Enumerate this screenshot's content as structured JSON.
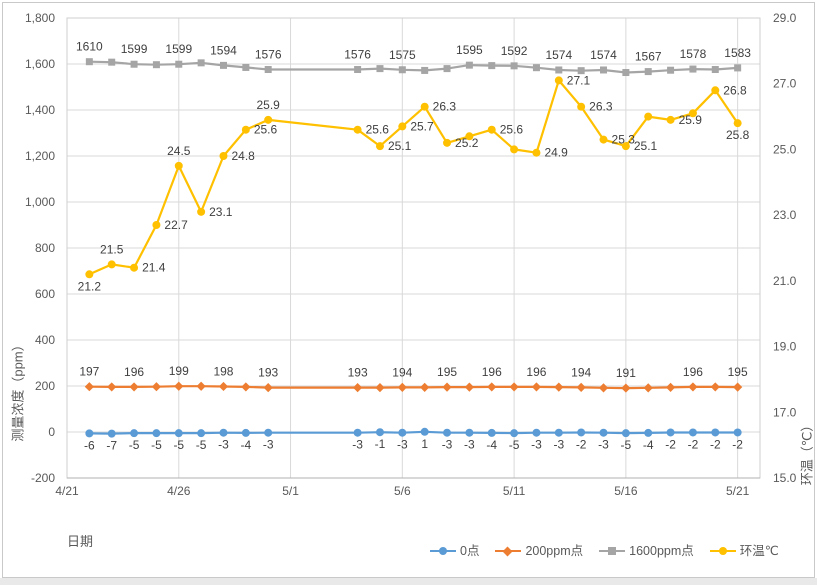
{
  "frame": {
    "background": "#ffffff",
    "border_color": "#c9c9c9",
    "outside_strip_color": "#e9e9e9"
  },
  "colors": {
    "gridline": "#d9d9d9",
    "plot_border": "#cfcfcf",
    "axis_line": "#b0b0b0",
    "axis_text": "#595959",
    "data_label_text": "#3f3f3f"
  },
  "chart_data": {
    "type": "line",
    "title": "",
    "x_axis": {
      "label": "日期",
      "start_date": "4/21",
      "end_date": "5/21",
      "axis_days": 31,
      "ticks": [
        {
          "label": "4/21",
          "day": 0
        },
        {
          "label": "4/26",
          "day": 5
        },
        {
          "label": "5/1",
          "day": 10
        },
        {
          "label": "5/6",
          "day": 15
        },
        {
          "label": "5/11",
          "day": 20
        },
        {
          "label": "5/16",
          "day": 25
        },
        {
          "label": "5/21",
          "day": 30
        }
      ]
    },
    "y_left": {
      "label": "测量浓度（ppm）",
      "min": -200,
      "max": 1800,
      "step": 200,
      "tick_labels": [
        "-200",
        "0",
        "200",
        "400",
        "600",
        "800",
        "1,000",
        "1,200",
        "1,400",
        "1,600",
        "1,800"
      ]
    },
    "y_right": {
      "label": "环温（℃）",
      "min": 15,
      "max": 29,
      "step": 2,
      "tick_labels": [
        "15.0",
        "17.0",
        "19.0",
        "21.0",
        "23.0",
        "25.0",
        "27.0",
        "29.0"
      ]
    },
    "legend": {
      "position": "bottom"
    },
    "series": [
      {
        "name": "0点",
        "color": "#5B9BD5",
        "marker": "circle",
        "axis": "left",
        "points": [
          [
            1,
            -6,
            "-6",
            "below"
          ],
          [
            2,
            -7,
            "-7",
            "below"
          ],
          [
            3,
            -5,
            "-5",
            "below"
          ],
          [
            4,
            -5,
            "-5",
            "below"
          ],
          [
            5,
            -5,
            "-5",
            "below"
          ],
          [
            6,
            -5,
            "-5",
            "below"
          ],
          [
            7,
            -3,
            "-3",
            "below"
          ],
          [
            8,
            -4,
            "-4",
            "below"
          ],
          [
            9,
            -3,
            "-3",
            "below"
          ],
          [
            13,
            -3,
            "-3",
            "below"
          ],
          [
            14,
            -1,
            "-1",
            "below"
          ],
          [
            15,
            -3,
            "-3",
            "below"
          ],
          [
            16,
            1,
            "1",
            "below"
          ],
          [
            17,
            -3,
            "-3",
            "below"
          ],
          [
            18,
            -3,
            "-3",
            "below"
          ],
          [
            19,
            -4,
            "-4",
            "below"
          ],
          [
            20,
            -5,
            "-5",
            "below"
          ],
          [
            21,
            -3,
            "-3",
            "below"
          ],
          [
            22,
            -3,
            "-3",
            "below"
          ],
          [
            23,
            -2,
            "-2",
            "below"
          ],
          [
            24,
            -3,
            "-3",
            "below"
          ],
          [
            25,
            -5,
            "-5",
            "below"
          ],
          [
            26,
            -4,
            "-4",
            "below"
          ],
          [
            27,
            -2,
            "-2",
            "below"
          ],
          [
            28,
            -2,
            "-2",
            "below"
          ],
          [
            29,
            -2,
            "-2",
            "below"
          ],
          [
            30,
            -2,
            "-2",
            "below"
          ]
        ]
      },
      {
        "name": "200ppm点",
        "color": "#ED7D31",
        "marker": "diamond",
        "axis": "left",
        "points": [
          [
            1,
            197,
            "197",
            "above"
          ],
          [
            2,
            196,
            null,
            null
          ],
          [
            3,
            196,
            "196",
            "above"
          ],
          [
            4,
            197,
            null,
            null
          ],
          [
            5,
            199,
            "199",
            "above"
          ],
          [
            6,
            199,
            null,
            null
          ],
          [
            7,
            198,
            "198",
            "above"
          ],
          [
            8,
            196,
            null,
            null
          ],
          [
            9,
            193,
            "193",
            "above"
          ],
          [
            13,
            193,
            "193",
            "above"
          ],
          [
            14,
            193,
            null,
            null
          ],
          [
            15,
            194,
            "194",
            "above"
          ],
          [
            16,
            194,
            null,
            null
          ],
          [
            17,
            195,
            "195",
            "above"
          ],
          [
            18,
            195,
            null,
            null
          ],
          [
            19,
            196,
            "196",
            "above"
          ],
          [
            20,
            196,
            null,
            null
          ],
          [
            21,
            196,
            "196",
            "above"
          ],
          [
            22,
            195,
            null,
            null
          ],
          [
            23,
            194,
            "194",
            "above"
          ],
          [
            24,
            192,
            null,
            null
          ],
          [
            25,
            191,
            "191",
            "above"
          ],
          [
            26,
            192,
            null,
            null
          ],
          [
            27,
            194,
            null,
            null
          ],
          [
            28,
            196,
            "196",
            "above"
          ],
          [
            29,
            196,
            null,
            null
          ],
          [
            30,
            195,
            "195",
            "above"
          ]
        ]
      },
      {
        "name": "1600ppm点",
        "color": "#A5A5A5",
        "marker": "square",
        "axis": "left",
        "points": [
          [
            1,
            1610,
            "1610",
            "above"
          ],
          [
            2,
            1608,
            null,
            null
          ],
          [
            3,
            1599,
            "1599",
            "above"
          ],
          [
            4,
            1597,
            null,
            null
          ],
          [
            5,
            1599,
            "1599",
            "above"
          ],
          [
            6,
            1605,
            null,
            null
          ],
          [
            7,
            1594,
            "1594",
            "above"
          ],
          [
            8,
            1585,
            null,
            null
          ],
          [
            9,
            1576,
            "1576",
            "above"
          ],
          [
            13,
            1576,
            "1576",
            "above"
          ],
          [
            14,
            1580,
            null,
            null
          ],
          [
            15,
            1575,
            "1575",
            "above"
          ],
          [
            16,
            1572,
            null,
            null
          ],
          [
            17,
            1580,
            null,
            null
          ],
          [
            18,
            1595,
            "1595",
            "above"
          ],
          [
            19,
            1593,
            null,
            null
          ],
          [
            20,
            1592,
            "1592",
            "above"
          ],
          [
            21,
            1584,
            null,
            null
          ],
          [
            22,
            1574,
            "1574",
            "above"
          ],
          [
            23,
            1571,
            null,
            null
          ],
          [
            24,
            1574,
            "1574",
            "above"
          ],
          [
            25,
            1563,
            null,
            null
          ],
          [
            26,
            1567,
            "1567",
            "above"
          ],
          [
            27,
            1573,
            null,
            null
          ],
          [
            28,
            1578,
            "1578",
            "above"
          ],
          [
            29,
            1576,
            null,
            null
          ],
          [
            30,
            1583,
            "1583",
            "above"
          ]
        ]
      },
      {
        "name": "环温℃",
        "color": "#FFC000",
        "marker": "circle",
        "axis": "right",
        "points": [
          [
            1,
            21.2,
            "21.2",
            "below"
          ],
          [
            2,
            21.5,
            "21.5",
            "above"
          ],
          [
            3,
            21.4,
            "21.4",
            "right"
          ],
          [
            4,
            22.7,
            "22.7",
            "right"
          ],
          [
            5,
            24.5,
            "24.5",
            "above"
          ],
          [
            6,
            23.1,
            "23.1",
            "right"
          ],
          [
            7,
            24.8,
            "24.8",
            "right"
          ],
          [
            8,
            25.6,
            "25.6",
            "right"
          ],
          [
            9,
            25.9,
            "25.9",
            "above"
          ],
          [
            13,
            25.6,
            "25.6",
            "right"
          ],
          [
            14,
            25.1,
            "25.1",
            "right"
          ],
          [
            15,
            25.7,
            "25.7",
            "right"
          ],
          [
            16,
            26.3,
            "26.3",
            "right"
          ],
          [
            17,
            25.2,
            "25.2",
            "right"
          ],
          [
            18,
            25.4,
            null,
            null
          ],
          [
            19,
            25.6,
            "25.6",
            "right"
          ],
          [
            20,
            25.0,
            null,
            null
          ],
          [
            21,
            24.9,
            "24.9",
            "right"
          ],
          [
            22,
            27.1,
            "27.1",
            "right"
          ],
          [
            23,
            26.3,
            "26.3",
            "right"
          ],
          [
            24,
            25.3,
            "25.3",
            "right"
          ],
          [
            25,
            25.1,
            "25.1",
            "right"
          ],
          [
            26,
            26.0,
            null,
            null
          ],
          [
            27,
            25.9,
            "25.9",
            "right"
          ],
          [
            28,
            26.1,
            null,
            null
          ],
          [
            29,
            26.8,
            "26.8",
            "right"
          ],
          [
            30,
            25.8,
            "25.8",
            "below"
          ]
        ]
      }
    ]
  }
}
